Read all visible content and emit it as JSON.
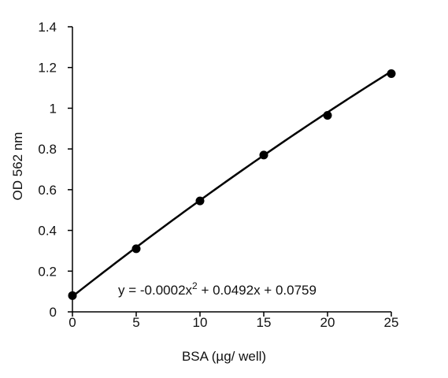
{
  "chart_data": {
    "type": "scatter",
    "title": "",
    "xlabel": "BSA (µg/ well)",
    "ylabel": "OD 562 nm",
    "xlim": [
      0,
      25
    ],
    "ylim": [
      0,
      1.4
    ],
    "x_ticks": [
      0,
      5,
      10,
      15,
      20,
      25
    ],
    "y_ticks": [
      0,
      0.2,
      0.4,
      0.6,
      0.8,
      1,
      1.2,
      1.4
    ],
    "grid": false,
    "legend": "none",
    "series": [
      {
        "x": [
          0,
          5,
          10,
          15,
          20,
          25
        ],
        "y": [
          0.08,
          0.31,
          0.545,
          0.77,
          0.965,
          1.17
        ]
      }
    ],
    "trendline": {
      "type": "polynomial",
      "coefficients": [
        -0.0002,
        0.0492,
        0.0759
      ],
      "equation_text": "y = -0.0002x",
      "equation_superscript": "2",
      "equation_rest": " + 0.0492x + 0.0759"
    },
    "colors": {
      "line": "#000000",
      "marker": "#000000",
      "axis": "#000000"
    }
  }
}
